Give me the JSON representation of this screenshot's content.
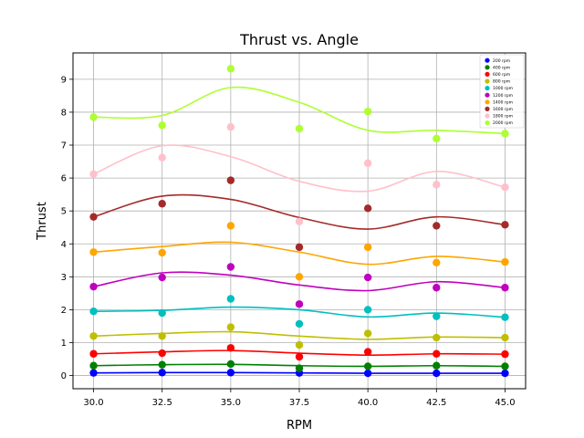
{
  "chart_data": {
    "type": "scatter",
    "title": "Thrust vs. Angle",
    "xlabel": "RPM",
    "ylabel": "Thrust",
    "x": [
      30.0,
      32.5,
      35.0,
      37.5,
      40.0,
      42.5,
      45.0
    ],
    "xlim": [
      29.25,
      45.75
    ],
    "ylim": [
      -0.4,
      9.8
    ],
    "xticks": [
      "30.0",
      "32.5",
      "35.0",
      "37.5",
      "40.0",
      "42.5",
      "45.0"
    ],
    "yticks": [
      "0",
      "1",
      "2",
      "3",
      "4",
      "5",
      "6",
      "7",
      "8",
      "9"
    ],
    "grid": true,
    "legend_position": "top-right",
    "series": [
      {
        "name": "200 rpm",
        "color": "#0000ff",
        "values": [
          0.08,
          0.09,
          0.09,
          0.08,
          0.07,
          0.07,
          0.07
        ],
        "curve": [
          [
            30.0,
            0.08
          ],
          [
            32.5,
            0.09
          ],
          [
            35.0,
            0.09
          ],
          [
            37.5,
            0.08
          ],
          [
            40.0,
            0.07
          ],
          [
            42.5,
            0.07
          ],
          [
            45.0,
            0.07
          ]
        ]
      },
      {
        "name": "400 rpm",
        "color": "#008000",
        "values": [
          0.3,
          0.33,
          0.35,
          0.22,
          0.28,
          0.3,
          0.28
        ],
        "curve": [
          [
            30.0,
            0.3
          ],
          [
            32.5,
            0.33
          ],
          [
            35.0,
            0.34
          ],
          [
            37.5,
            0.3
          ],
          [
            40.0,
            0.28
          ],
          [
            42.5,
            0.3
          ],
          [
            45.0,
            0.28
          ]
        ]
      },
      {
        "name": "600 rpm",
        "color": "#ff0000",
        "values": [
          0.66,
          0.68,
          0.84,
          0.57,
          0.72,
          0.66,
          0.65
        ],
        "curve": [
          [
            30.0,
            0.66
          ],
          [
            32.5,
            0.72
          ],
          [
            35.0,
            0.76
          ],
          [
            37.5,
            0.68
          ],
          [
            40.0,
            0.62
          ],
          [
            42.5,
            0.66
          ],
          [
            45.0,
            0.65
          ]
        ]
      },
      {
        "name": "800 rpm",
        "color": "#bfbf00",
        "values": [
          1.2,
          1.2,
          1.47,
          0.93,
          1.28,
          1.15,
          1.15
        ],
        "curve": [
          [
            30.0,
            1.2
          ],
          [
            32.5,
            1.28
          ],
          [
            35.0,
            1.33
          ],
          [
            37.5,
            1.2
          ],
          [
            40.0,
            1.1
          ],
          [
            42.5,
            1.17
          ],
          [
            45.0,
            1.15
          ]
        ]
      },
      {
        "name": "1000 rpm",
        "color": "#00bfbf",
        "values": [
          1.95,
          1.9,
          2.33,
          1.57,
          2.0,
          1.8,
          1.77
        ],
        "curve": [
          [
            30.0,
            1.95
          ],
          [
            32.5,
            1.98
          ],
          [
            35.0,
            2.08
          ],
          [
            37.5,
            2.0
          ],
          [
            40.0,
            1.78
          ],
          [
            42.5,
            1.9
          ],
          [
            45.0,
            1.77
          ]
        ]
      },
      {
        "name": "1200 rpm",
        "color": "#bf00bf",
        "values": [
          2.7,
          2.98,
          3.3,
          2.17,
          2.98,
          2.67,
          2.67
        ],
        "curve": [
          [
            30.0,
            2.7
          ],
          [
            32.5,
            3.12
          ],
          [
            35.0,
            3.05
          ],
          [
            37.5,
            2.75
          ],
          [
            40.0,
            2.58
          ],
          [
            42.5,
            2.85
          ],
          [
            45.0,
            2.67
          ]
        ]
      },
      {
        "name": "1400 rpm",
        "color": "#ffa500",
        "values": [
          3.75,
          3.73,
          4.55,
          3.0,
          3.9,
          3.43,
          3.45
        ],
        "curve": [
          [
            30.0,
            3.75
          ],
          [
            32.5,
            3.92
          ],
          [
            35.0,
            4.05
          ],
          [
            37.5,
            3.75
          ],
          [
            40.0,
            3.38
          ],
          [
            42.5,
            3.62
          ],
          [
            45.0,
            3.45
          ]
        ]
      },
      {
        "name": "1600 rpm",
        "color": "#a52a2a",
        "values": [
          4.82,
          5.22,
          5.93,
          3.9,
          5.08,
          4.55,
          4.58
        ],
        "curve": [
          [
            30.0,
            4.82
          ],
          [
            32.5,
            5.45
          ],
          [
            35.0,
            5.35
          ],
          [
            37.5,
            4.8
          ],
          [
            40.0,
            4.45
          ],
          [
            42.5,
            4.82
          ],
          [
            45.0,
            4.58
          ]
        ]
      },
      {
        "name": "1800 rpm",
        "color": "#ffc0cb",
        "values": [
          6.12,
          6.62,
          7.55,
          4.68,
          6.45,
          5.8,
          5.72
        ],
        "curve": [
          [
            30.0,
            6.12
          ],
          [
            32.5,
            6.98
          ],
          [
            35.0,
            6.65
          ],
          [
            37.5,
            5.9
          ],
          [
            40.0,
            5.6
          ],
          [
            42.5,
            6.2
          ],
          [
            45.0,
            5.72
          ]
        ]
      },
      {
        "name": "2000 rpm",
        "color": "#adff2f",
        "values": [
          7.85,
          7.6,
          9.32,
          7.5,
          8.02,
          7.2,
          7.35
        ],
        "curve": [
          [
            30.0,
            7.85
          ],
          [
            32.5,
            7.9
          ],
          [
            35.0,
            8.75
          ],
          [
            37.5,
            8.3
          ],
          [
            40.0,
            7.45
          ],
          [
            42.5,
            7.45
          ],
          [
            45.0,
            7.35
          ]
        ]
      }
    ]
  }
}
